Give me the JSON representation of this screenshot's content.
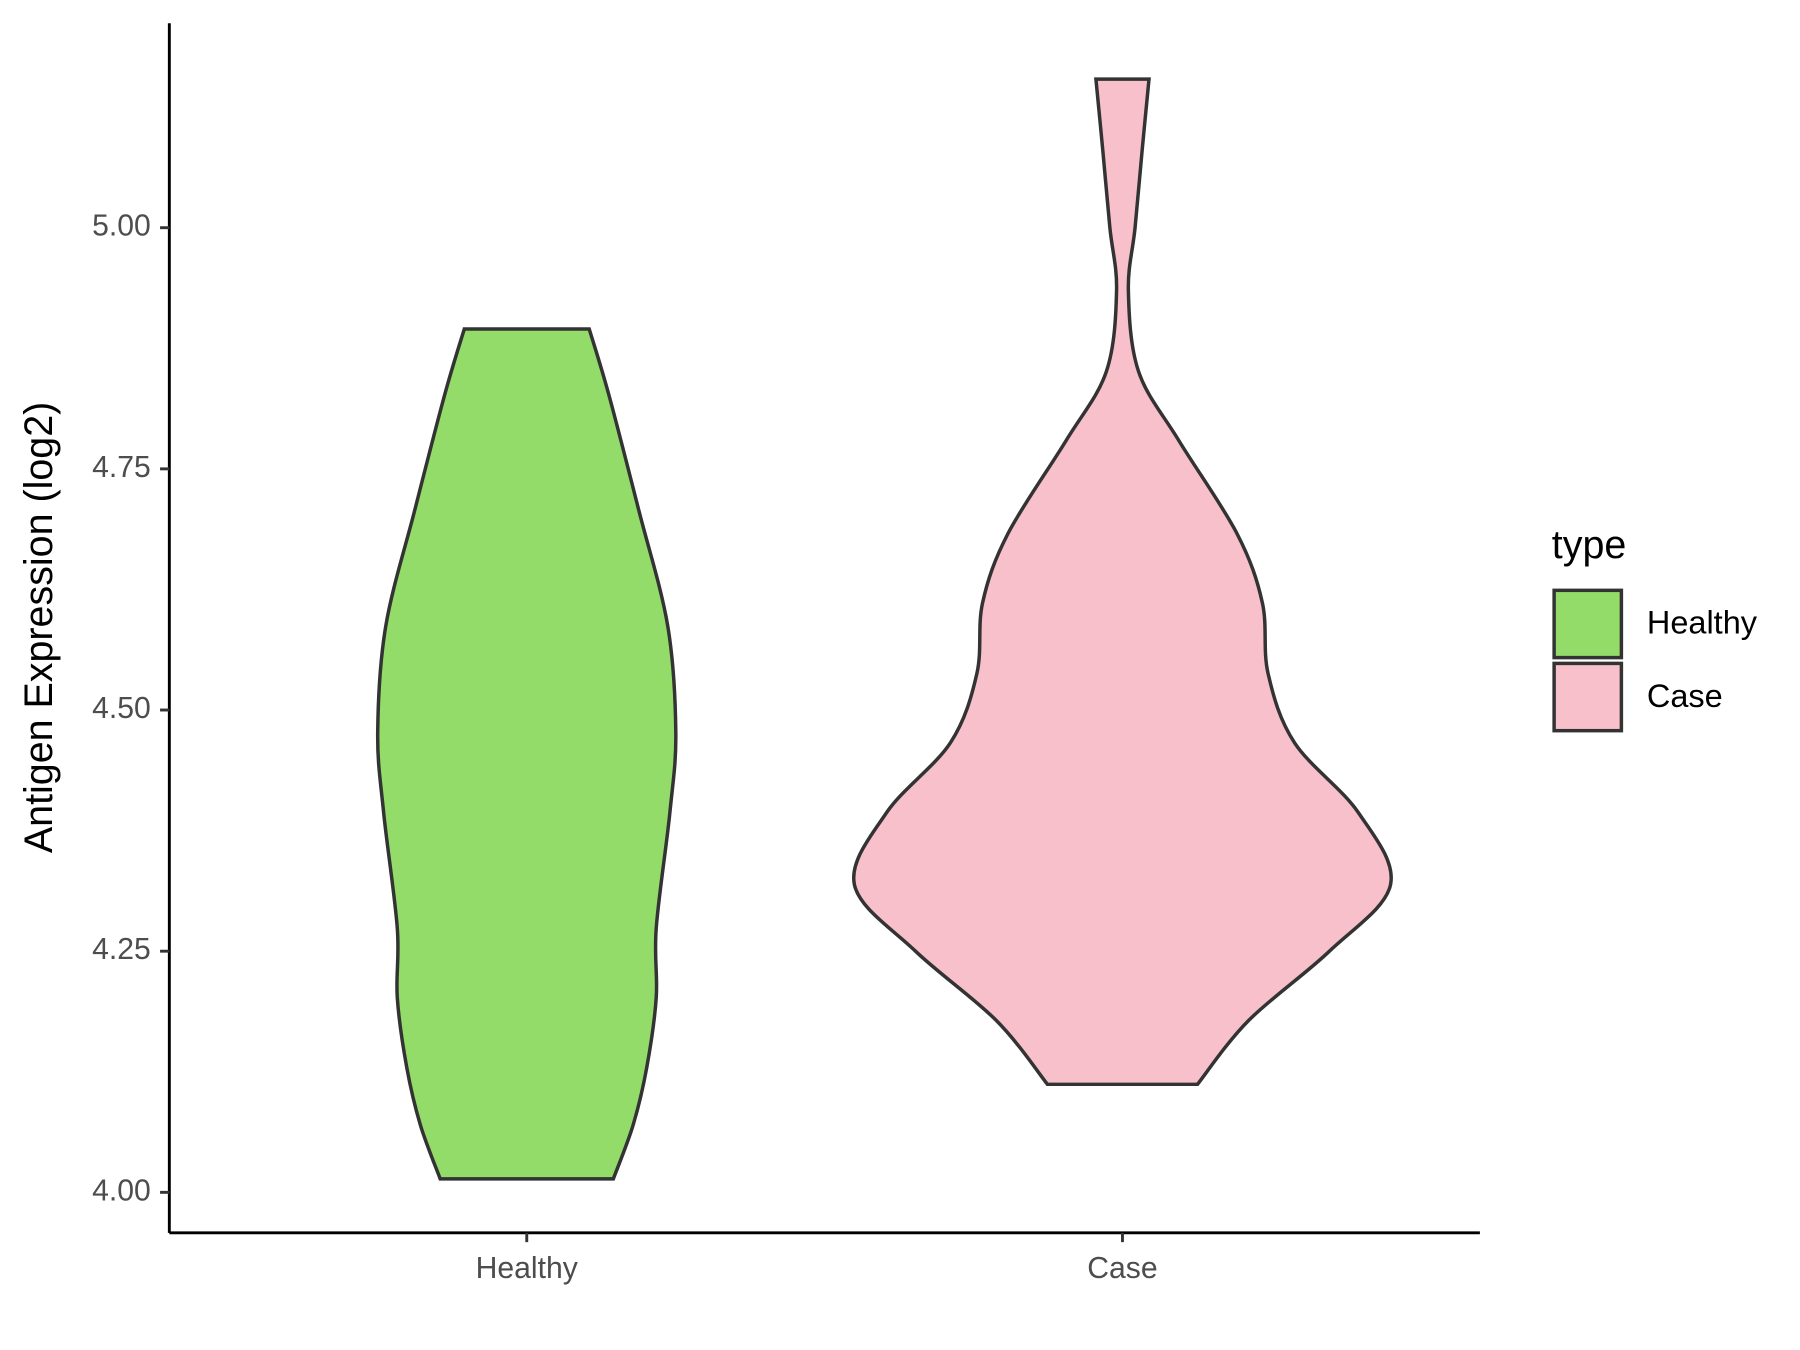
{
  "chart_data": {
    "type": "violin",
    "y_label": "Antigen Expression (log2)",
    "categories": [
      "Healthy",
      "Case"
    ],
    "series": [
      {
        "name": "Healthy",
        "color": "#93dc6a",
        "y": [
          4.895,
          4.827,
          4.707,
          4.587,
          4.477,
          4.394,
          4.274,
          4.202,
          4.13,
          4.07,
          4.014
        ],
        "density": [
          0.233,
          0.306,
          0.418,
          0.526,
          0.556,
          0.534,
          0.483,
          0.483,
          0.448,
          0.397,
          0.323
        ]
      },
      {
        "name": "Case",
        "color": "#f8c0cb",
        "y": [
          5.154,
          5.079,
          5.0,
          4.935,
          4.851,
          4.779,
          4.683,
          4.611,
          4.538,
          4.466,
          4.394,
          4.319,
          4.25,
          4.178,
          4.112
        ],
        "density": [
          0.099,
          0.073,
          0.047,
          0.022,
          0.06,
          0.211,
          0.427,
          0.522,
          0.543,
          0.642,
          0.879,
          1,
          0.772,
          0.47,
          0.28
        ]
      }
    ],
    "ylim": [
      3.958,
      5.212
    ],
    "yticks": [
      {
        "value": 4,
        "label": "4.00"
      },
      {
        "value": 4.25,
        "label": "4.25"
      },
      {
        "value": 4.5,
        "label": "4.50"
      },
      {
        "value": 4.75,
        "label": "4.75"
      },
      {
        "value": 5,
        "label": "5.00"
      }
    ],
    "legend_title": "type",
    "legend_position": "right",
    "outline_color": "#333333"
  }
}
